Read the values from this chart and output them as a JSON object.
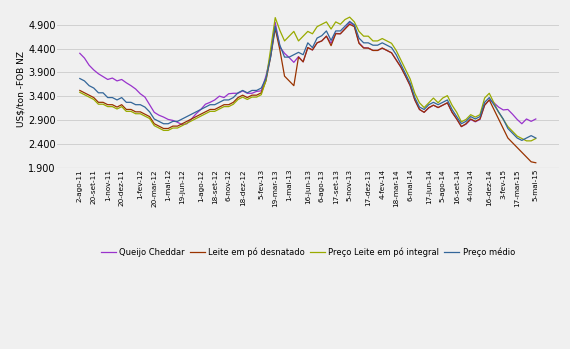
{
  "title": "",
  "ylabel": "US$/ton -FOB NZ",
  "ylim": [
    1900,
    5200
  ],
  "yticks": [
    1900,
    2400,
    2900,
    3400,
    3900,
    4400,
    4900
  ],
  "ytick_labels": [
    "1.900",
    "2.400",
    "2.900",
    "3.400",
    "3.900",
    "4.400",
    "4.900"
  ],
  "background_color": "#f0f0f0",
  "plot_bg": "#f0f0f0",
  "legend": [
    "Queijo Cheddar",
    "Leite em pó desnatado",
    "Preço Leite em pó integral",
    "Preço médio"
  ],
  "colors": {
    "queijo": "#9933CC",
    "desnatado": "#993300",
    "integral": "#99AA00",
    "medio": "#336699"
  },
  "xtick_labels": [
    "2-ago-11",
    "20-set-11",
    "1-nov-11",
    "20-dez-11",
    "1-fev-12",
    "20-mar-12",
    "1-mai-12",
    "19-jun-12",
    "1-ago-12",
    "18-set-12",
    "6-nov-12",
    "18-dez-12",
    "5-fev-13",
    "19-mar-13",
    "1-mai-13",
    "16-jun-13",
    "6-ago-13",
    "17-set-13",
    "5-nov-13",
    "17-dez-13",
    "4-fev-14",
    "18-mar-14",
    "6-mai-14",
    "17-jun-14",
    "5-ago-14",
    "16-set-14",
    "4-nov-14",
    "16-dez-14",
    "3-fev-15",
    "17-mar-15",
    "5-mai-15"
  ],
  "queijo_cheddar": [
    4300,
    4200,
    4050,
    3950,
    3870,
    3810,
    3750,
    3780,
    3720,
    3750,
    3680,
    3620,
    3550,
    3450,
    3380,
    3220,
    3060,
    3000,
    2960,
    2910,
    2890,
    2850,
    2800,
    2820,
    2920,
    3030,
    3120,
    3230,
    3270,
    3320,
    3400,
    3370,
    3450,
    3460,
    3460,
    3510,
    3460,
    3460,
    3500,
    3510,
    3820,
    4250,
    4950,
    4430,
    4300,
    4210,
    4110,
    4230,
    4120,
    4420,
    4370,
    4520,
    4560,
    4660,
    4510,
    4720,
    4710,
    4820,
    4950,
    4880,
    4520,
    4420,
    4410,
    4360,
    4360,
    4410,
    4360,
    4310,
    4160,
    4010,
    3820,
    3620,
    3320,
    3120,
    3060,
    3150,
    3210,
    3160,
    3210,
    3260,
    3060,
    2920,
    2760,
    2810,
    2910,
    2860,
    2910,
    3210,
    3320,
    3260,
    3170,
    3110,
    3120,
    3020,
    2910,
    2820,
    2920,
    2870,
    2920
  ],
  "leite_desnatado": [
    3520,
    3470,
    3420,
    3370,
    3270,
    3270,
    3220,
    3220,
    3170,
    3220,
    3120,
    3120,
    3070,
    3070,
    3020,
    2970,
    2820,
    2770,
    2720,
    2720,
    2770,
    2770,
    2820,
    2870,
    2920,
    2970,
    3020,
    3070,
    3120,
    3120,
    3170,
    3220,
    3220,
    3270,
    3370,
    3420,
    3370,
    3420,
    3420,
    3470,
    3720,
    4220,
    4820,
    4370,
    3820,
    3720,
    3620,
    4220,
    4120,
    4420,
    4370,
    4520,
    4560,
    4660,
    4460,
    4710,
    4710,
    4810,
    4910,
    4860,
    4510,
    4410,
    4410,
    4360,
    4360,
    4410,
    4360,
    4310,
    4160,
    4010,
    3820,
    3620,
    3320,
    3120,
    3060,
    3160,
    3210,
    3160,
    3210,
    3260,
    3060,
    2920,
    2760,
    2820,
    2920,
    2870,
    2920,
    3210,
    3320,
    3120,
    2920,
    2720,
    2520,
    2420,
    2320,
    2220,
    2120,
    2020,
    2000
  ],
  "leite_integral": [
    3480,
    3430,
    3380,
    3330,
    3230,
    3230,
    3180,
    3180,
    3130,
    3180,
    3080,
    3080,
    3030,
    3030,
    2980,
    2930,
    2780,
    2730,
    2680,
    2680,
    2730,
    2730,
    2780,
    2830,
    2880,
    2930,
    2980,
    3030,
    3080,
    3080,
    3130,
    3180,
    3180,
    3230,
    3330,
    3380,
    3330,
    3380,
    3380,
    3430,
    3730,
    4380,
    5050,
    4780,
    4560,
    4660,
    4760,
    4560,
    4660,
    4760,
    4710,
    4860,
    4910,
    4960,
    4810,
    4960,
    4910,
    5010,
    5060,
    4960,
    4760,
    4660,
    4660,
    4560,
    4560,
    4610,
    4560,
    4510,
    4360,
    4160,
    3960,
    3760,
    3460,
    3260,
    3160,
    3260,
    3360,
    3260,
    3360,
    3410,
    3210,
    3060,
    2860,
    2910,
    3010,
    2960,
    3010,
    3360,
    3460,
    3260,
    3060,
    2910,
    2760,
    2660,
    2560,
    2510,
    2460,
    2460,
    2510
  ],
  "preco_medio": [
    3770,
    3720,
    3620,
    3570,
    3470,
    3470,
    3370,
    3370,
    3320,
    3370,
    3270,
    3270,
    3220,
    3220,
    3170,
    3070,
    2920,
    2870,
    2820,
    2820,
    2870,
    2870,
    2920,
    2970,
    3020,
    3070,
    3120,
    3170,
    3220,
    3220,
    3270,
    3320,
    3320,
    3370,
    3470,
    3520,
    3470,
    3520,
    3520,
    3570,
    3770,
    4220,
    4870,
    4470,
    4220,
    4220,
    4270,
    4320,
    4270,
    4520,
    4420,
    4620,
    4670,
    4770,
    4570,
    4770,
    4770,
    4870,
    4970,
    4900,
    4620,
    4520,
    4520,
    4470,
    4470,
    4520,
    4470,
    4420,
    4270,
    4070,
    3870,
    3670,
    3370,
    3170,
    3120,
    3220,
    3270,
    3220,
    3270,
    3320,
    3120,
    2970,
    2820,
    2870,
    2970,
    2920,
    2970,
    3270,
    3370,
    3220,
    3070,
    2920,
    2720,
    2620,
    2520,
    2470,
    2520,
    2570,
    2520
  ]
}
